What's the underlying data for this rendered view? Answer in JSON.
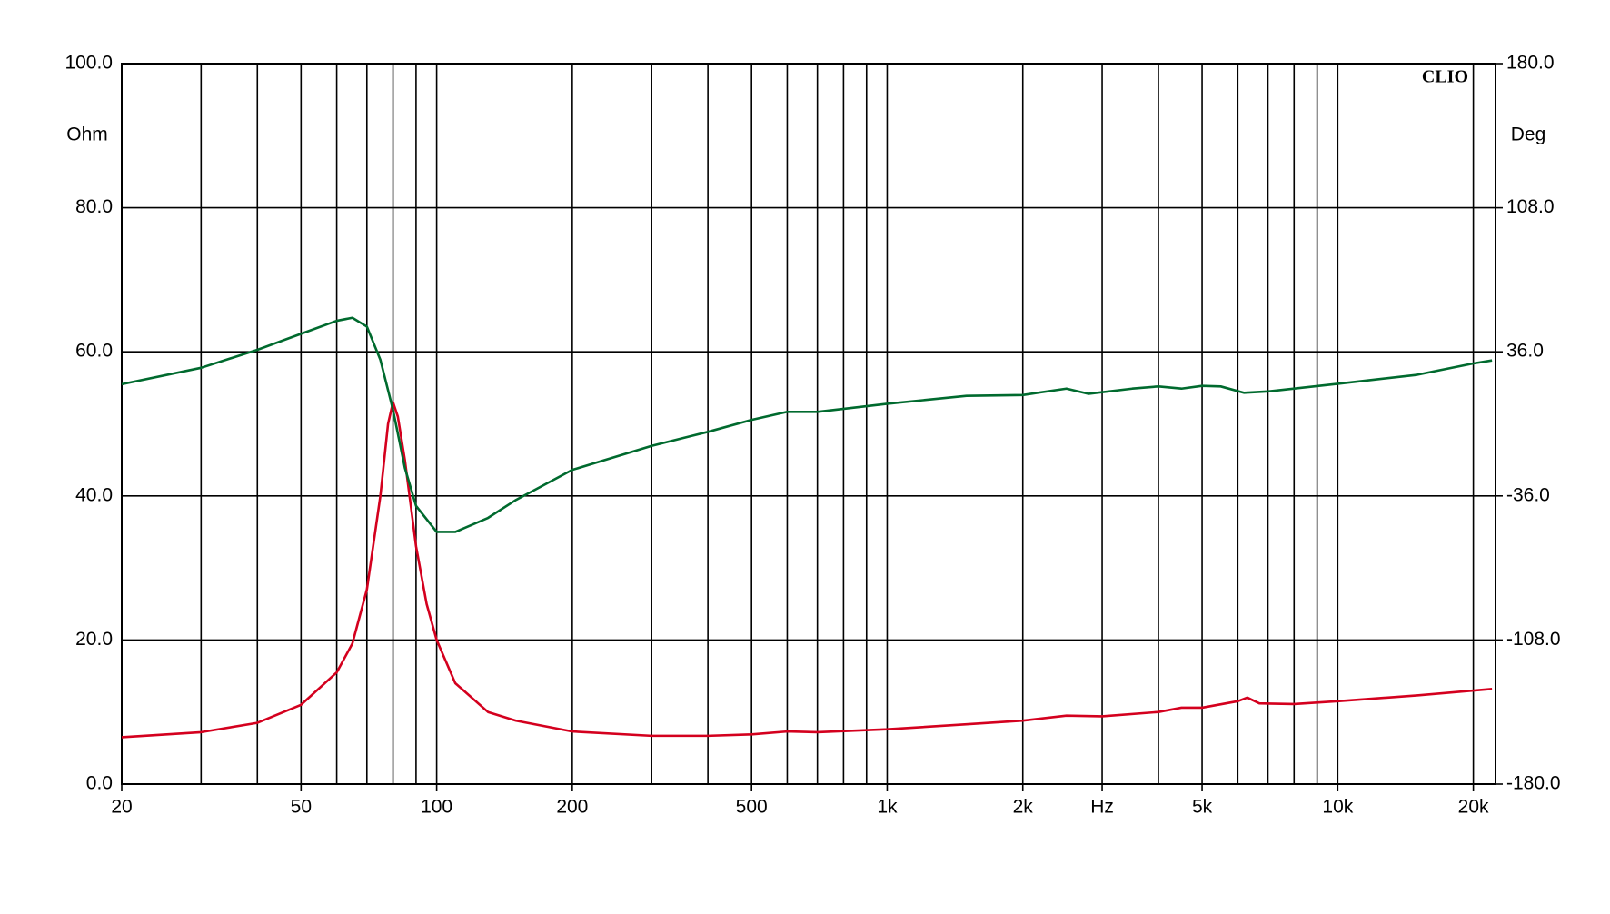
{
  "chart_data": {
    "type": "line",
    "y_label": "Ohm",
    "y2_label": "Deg",
    "annotation": "CLIO",
    "log_x": true,
    "grid": true,
    "xlim": [
      20,
      22400
    ],
    "xticks": [
      20,
      50,
      100,
      200,
      500,
      {
        "value": 1000,
        "label": "1k"
      },
      {
        "value": 2000,
        "label": "2k"
      },
      {
        "value": 3000,
        "label": "Hz"
      },
      {
        "value": 5000,
        "label": "5k"
      },
      {
        "value": 10000,
        "label": "10k"
      },
      {
        "value": 20000,
        "label": "20k"
      }
    ],
    "xgrid": [
      20,
      30,
      40,
      50,
      60,
      70,
      80,
      90,
      100,
      200,
      300,
      400,
      500,
      600,
      700,
      800,
      900,
      1000,
      2000,
      3000,
      4000,
      5000,
      6000,
      7000,
      8000,
      9000,
      10000,
      20000
    ],
    "ylim": [
      0,
      100
    ],
    "yticks": [
      {
        "value": 0,
        "label": "0.0"
      },
      {
        "value": 20,
        "label": "20.0"
      },
      {
        "value": 40,
        "label": "40.0"
      },
      {
        "value": 60,
        "label": "60.0"
      },
      {
        "value": 80,
        "label": "80.0"
      },
      {
        "value": 100,
        "label": "100.0"
      }
    ],
    "y2lim": [
      -180,
      180
    ],
    "y2ticks": [
      {
        "value": -180,
        "label": "-180.0"
      },
      {
        "value": -108,
        "label": "-108.0"
      },
      {
        "value": -36,
        "label": "-36.0"
      },
      {
        "value": 36,
        "label": "36.0"
      },
      {
        "value": 108,
        "label": "108.0"
      },
      {
        "value": 180,
        "label": "180.0"
      }
    ],
    "series": [
      {
        "color": "#d4001e",
        "x": [
          20,
          30,
          40,
          50,
          60,
          65,
          70,
          75,
          78,
          80,
          82,
          85,
          90,
          95,
          100,
          110,
          130,
          150,
          200,
          300,
          400,
          500,
          600,
          700,
          1000,
          1500,
          2000,
          2500,
          3000,
          4000,
          4500,
          5000,
          6000,
          6300,
          6700,
          8000,
          10000,
          15000,
          22000
        ],
        "values": [
          6.5,
          7.2,
          8.5,
          11,
          15.5,
          19.5,
          27,
          40,
          50,
          53,
          51,
          45,
          33,
          25,
          20,
          14,
          10,
          8.8,
          7.3,
          6.7,
          6.7,
          6.9,
          7.3,
          7.2,
          7.6,
          8.3,
          8.8,
          9.5,
          9.4,
          10,
          10.6,
          10.6,
          11.5,
          12,
          11.2,
          11.1,
          11.5,
          12.3,
          13.2
        ]
      },
      {
        "color": "#006a2e",
        "axis": "y2",
        "x": [
          20,
          30,
          40,
          50,
          60,
          65,
          70,
          75,
          80,
          85,
          90,
          100,
          110,
          130,
          150,
          200,
          300,
          400,
          500,
          600,
          700,
          1000,
          1500,
          2000,
          2500,
          2800,
          3500,
          4000,
          4500,
          5000,
          5500,
          6200,
          7000,
          10000,
          15000,
          20000,
          22000
        ],
        "values": [
          19.8,
          28,
          37,
          45,
          51.5,
          53,
          48.6,
          32,
          7,
          -22,
          -41,
          -54,
          -54,
          -47,
          -38,
          -23,
          -11,
          -4,
          2,
          6,
          6,
          10,
          14,
          14.4,
          17.6,
          15,
          17.6,
          18.7,
          17.6,
          19,
          18.7,
          15.5,
          16.2,
          20,
          24.5,
          30.2,
          31.7
        ]
      }
    ]
  }
}
